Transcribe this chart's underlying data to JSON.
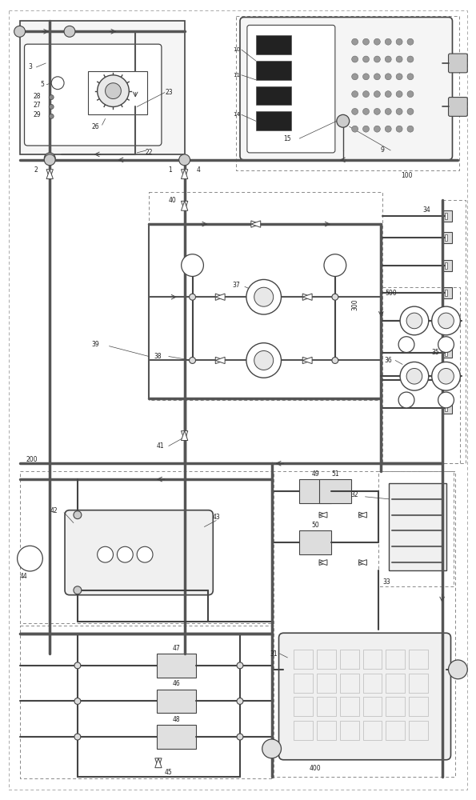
{
  "bg": "#ffffff",
  "lc": "#444444",
  "dc": "#888888",
  "gc": "#777777",
  "fig_w": 5.95,
  "fig_h": 10.0,
  "dpi": 100
}
